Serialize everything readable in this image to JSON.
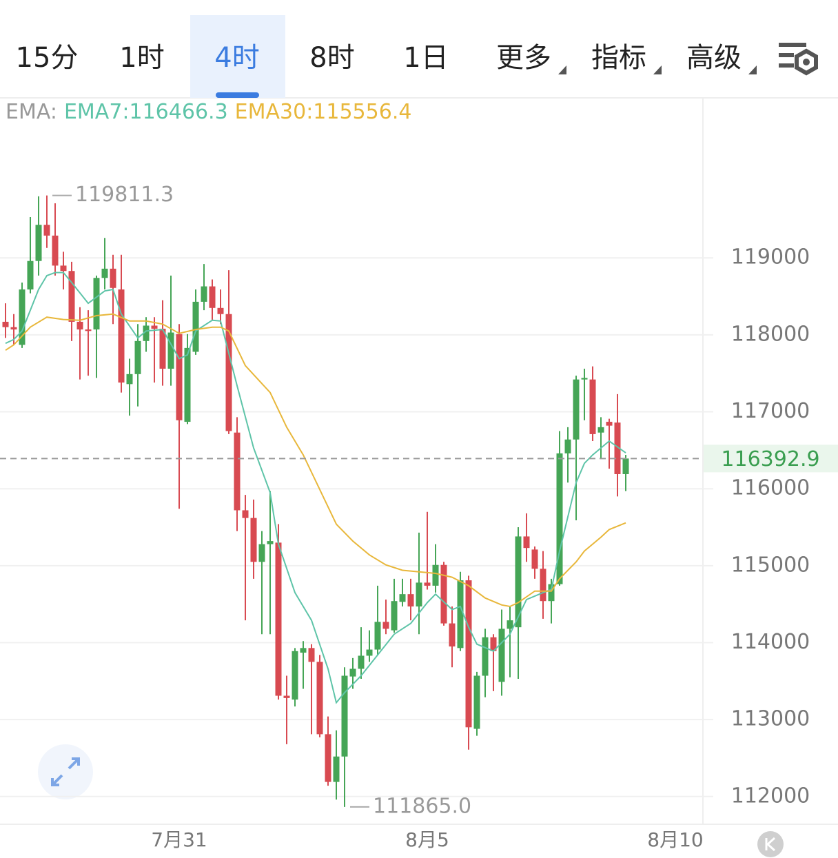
{
  "tabs": [
    "15分",
    "1时",
    "4时",
    "8时",
    "1日"
  ],
  "selected_tab": 2,
  "dropdowns": [
    "更多",
    "指标",
    "高级"
  ],
  "chart_data": {
    "type": "candlestick",
    "indicator_label": "EMA:",
    "open": [
      118170,
      118100,
      117870,
      118590,
      118960,
      119430,
      119290,
      118900,
      118830,
      118170,
      118070,
      118070,
      118740,
      118860,
      118590,
      117360,
      117490,
      117920,
      118120,
      118080,
      117560,
      118010,
      116870,
      117780,
      118430,
      118630,
      118350,
      118270,
      116730,
      115720,
      115620,
      115050,
      115280,
      115300,
      113310,
      113260,
      113870,
      113930,
      113750,
      112810,
      112190,
      112520,
      113560,
      113660,
      113830,
      113910,
      114270,
      114160,
      114530,
      114630,
      114470,
      114780,
      114740,
      115010,
      114250,
      113930,
      114810,
      112880,
      113570,
      114070,
      113490,
      114180,
      114200,
      115380,
      115210,
      114960,
      114540,
      114760,
      116460,
      116640,
      117420,
      117420,
      116730,
      116870,
      116860,
      116190
    ],
    "high": [
      118410,
      118270,
      118680,
      119530,
      119800,
      119811.3,
      119710,
      119080,
      118950,
      118360,
      118320,
      118770,
      119260,
      119040,
      119040,
      117690,
      118140,
      118230,
      118230,
      118450,
      118770,
      118140,
      118010,
      118590,
      118920,
      118720,
      118590,
      118840,
      116930,
      115920,
      115860,
      115450,
      115970,
      115540,
      113570,
      113930,
      114020,
      113980,
      113840,
      113040,
      112860,
      113680,
      113800,
      114200,
      114160,
      114740,
      114560,
      114830,
      114830,
      114830,
      115430,
      115700,
      115280,
      115050,
      114470,
      114920,
      114870,
      113620,
      114180,
      114110,
      114430,
      114470,
      115500,
      115680,
      115250,
      115190,
      114830,
      116750,
      116800,
      117470,
      117560,
      117590,
      116930,
      116910,
      117230,
      116440
    ],
    "low": [
      117960,
      117870,
      117830,
      118540,
      118770,
      119130,
      118770,
      118590,
      117920,
      117420,
      117470,
      117440,
      118590,
      118140,
      117250,
      116950,
      117070,
      117780,
      117380,
      117340,
      117340,
      115740,
      116840,
      117740,
      118320,
      118190,
      118140,
      116710,
      115450,
      114290,
      114830,
      114110,
      114110,
      113260,
      112680,
      113170,
      113400,
      112810,
      112770,
      112140,
      111960,
      111865,
      113400,
      113530,
      113750,
      113840,
      114110,
      114130,
      114470,
      114290,
      114110,
      114690,
      114650,
      114220,
      113680,
      113890,
      112610,
      112790,
      113290,
      113370,
      113310,
      113550,
      113530,
      115050,
      114830,
      114310,
      114250,
      114740,
      116080,
      115590,
      116890,
      116620,
      116400,
      116260,
      115900,
      115970
    ],
    "close": [
      118100,
      118070,
      118590,
      118960,
      119430,
      119290,
      118900,
      118830,
      118170,
      118070,
      118050,
      118740,
      118860,
      118610,
      117380,
      117490,
      117920,
      118120,
      118080,
      117560,
      118030,
      116890,
      117830,
      118430,
      118630,
      118350,
      118270,
      116750,
      115720,
      115620,
      115050,
      115280,
      115320,
      113310,
      113280,
      113890,
      113930,
      113750,
      112810,
      112190,
      112520,
      113570,
      113660,
      113830,
      113910,
      114270,
      114180,
      114540,
      114630,
      114470,
      114780,
      114740,
      115010,
      114250,
      113950,
      114810,
      112900,
      113570,
      114070,
      113890,
      114180,
      114290,
      115380,
      115230,
      114960,
      114540,
      114760,
      116460,
      116640,
      117420,
      117440,
      116710,
      116800,
      116820,
      116190,
      116392.9
    ],
    "up_color": "#45a556",
    "down_color": "#d84a51",
    "series": [
      {
        "name": "EMA7:116466.3",
        "color": "#5ec4a8",
        "x": [
          0,
          1,
          2,
          4,
          5,
          6,
          7,
          8,
          10,
          12,
          13,
          14,
          16,
          17,
          19,
          21,
          22,
          23,
          25,
          26,
          28,
          30,
          32,
          33,
          35,
          37,
          39,
          40,
          41,
          43,
          45,
          47,
          49,
          51,
          52,
          54,
          55,
          56,
          57,
          59,
          61,
          63,
          65,
          66,
          67,
          69,
          70,
          71,
          73,
          75
        ],
        "values": [
          117890,
          117940,
          118050,
          118590,
          118770,
          118810,
          118810,
          118680,
          118410,
          118570,
          118590,
          118270,
          117960,
          118050,
          118070,
          117690,
          117740,
          118050,
          118190,
          118180,
          117340,
          116530,
          115950,
          115280,
          114650,
          114290,
          113660,
          113220,
          113350,
          113570,
          113840,
          114110,
          114250,
          114520,
          114630,
          114430,
          114470,
          114200,
          113980,
          113890,
          114110,
          114560,
          114650,
          114690,
          115190,
          116080,
          116330,
          116440,
          116620,
          116466.3
        ]
      },
      {
        "name": "EMA30:115556.4",
        "color": "#e8b73b",
        "x": [
          0,
          1,
          3,
          5,
          7,
          9,
          11,
          13,
          15,
          17,
          19,
          21,
          23,
          25,
          26,
          27,
          29,
          32,
          34,
          36,
          38,
          40,
          42,
          44,
          46,
          48,
          50,
          52,
          54,
          56,
          58,
          60,
          61,
          62,
          64,
          66,
          67,
          69,
          70,
          72,
          73,
          75
        ],
        "values": [
          117800,
          117870,
          118100,
          118230,
          118200,
          118190,
          118250,
          118270,
          118180,
          118180,
          118140,
          118020,
          118070,
          118100,
          118100,
          118050,
          117600,
          117250,
          116800,
          116440,
          115990,
          115540,
          115320,
          115140,
          115010,
          114940,
          114920,
          114900,
          114850,
          114740,
          114580,
          114490,
          114470,
          114520,
          114670,
          114670,
          114830,
          115050,
          115190,
          115370,
          115470,
          115556.4
        ]
      }
    ],
    "high_label": "119811.3",
    "low_label": "111865.0",
    "xlim": [
      -0.667,
      84.333
    ],
    "xticks": [
      {
        "value": 21,
        "label": "7月31"
      },
      {
        "value": 51,
        "label": "8月5"
      },
      {
        "value": 81,
        "label": "8月10"
      }
    ],
    "ylim": [
      111640,
      121080
    ],
    "yticks": [
      112000,
      113000,
      114000,
      115000,
      116000,
      117000,
      118000,
      119000
    ],
    "grid": true
  }
}
